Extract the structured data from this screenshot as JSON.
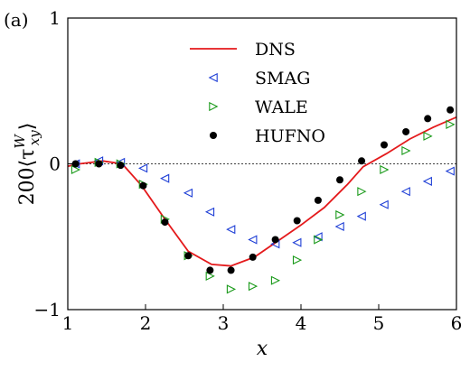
{
  "chart_data": {
    "type": "line",
    "panel_label": "(a)",
    "xlabel": "x",
    "ylabel_parts": {
      "prefix": "200⟨τ",
      "superscript": "W",
      "subscript": "xy",
      "suffix": "⟩"
    },
    "xlim": [
      1,
      6
    ],
    "ylim": [
      -1,
      1
    ],
    "xticks": [
      1,
      2,
      3,
      4,
      5,
      6
    ],
    "yticks": [
      -1,
      0,
      1
    ],
    "zero_line": true,
    "grid": false,
    "legend_position": "upper-center",
    "series": [
      {
        "name": "DNS",
        "style": "line",
        "color": "#e41a1c",
        "x": [
          0.97,
          1.15,
          1.45,
          1.7,
          1.95,
          2.25,
          2.55,
          2.85,
          3.1,
          3.4,
          3.7,
          4.0,
          4.3,
          4.6,
          4.8,
          5.1,
          5.4,
          5.7,
          6.0
        ],
        "y": [
          -0.02,
          0.0,
          0.02,
          0.0,
          -0.15,
          -0.38,
          -0.6,
          -0.69,
          -0.7,
          -0.64,
          -0.53,
          -0.42,
          -0.3,
          -0.14,
          -0.02,
          0.07,
          0.17,
          0.25,
          0.32
        ]
      },
      {
        "name": "SMAG",
        "style": "triangle-left",
        "color": "#1f3fd6",
        "x": [
          1.1,
          1.4,
          1.68,
          1.97,
          2.25,
          2.55,
          2.83,
          3.1,
          3.38,
          3.67,
          3.95,
          4.22,
          4.5,
          4.78,
          5.07,
          5.35,
          5.63,
          5.92
        ],
        "y": [
          0.0,
          0.02,
          0.01,
          -0.03,
          -0.1,
          -0.2,
          -0.33,
          -0.45,
          -0.52,
          -0.55,
          -0.54,
          -0.5,
          -0.43,
          -0.36,
          -0.28,
          -0.19,
          -0.12,
          -0.05
        ]
      },
      {
        "name": "WALE",
        "style": "triangle-right",
        "color": "#1a9a1a",
        "x": [
          1.1,
          1.4,
          1.68,
          1.97,
          2.25,
          2.55,
          2.83,
          3.1,
          3.38,
          3.67,
          3.95,
          4.22,
          4.5,
          4.78,
          5.07,
          5.35,
          5.63,
          5.92
        ],
        "y": [
          -0.04,
          0.01,
          0.0,
          -0.14,
          -0.38,
          -0.63,
          -0.77,
          -0.86,
          -0.84,
          -0.8,
          -0.66,
          -0.52,
          -0.35,
          -0.19,
          -0.04,
          0.09,
          0.19,
          0.27
        ]
      },
      {
        "name": "HUFNO",
        "style": "circle",
        "color": "#000000",
        "x": [
          1.1,
          1.4,
          1.68,
          1.97,
          2.25,
          2.55,
          2.83,
          3.1,
          3.38,
          3.67,
          3.95,
          4.22,
          4.5,
          4.78,
          5.07,
          5.35,
          5.63,
          5.92
        ],
        "y": [
          0.0,
          0.0,
          -0.01,
          -0.15,
          -0.4,
          -0.63,
          -0.73,
          -0.73,
          -0.64,
          -0.52,
          -0.39,
          -0.25,
          -0.11,
          0.02,
          0.13,
          0.22,
          0.31,
          0.37
        ]
      }
    ]
  }
}
